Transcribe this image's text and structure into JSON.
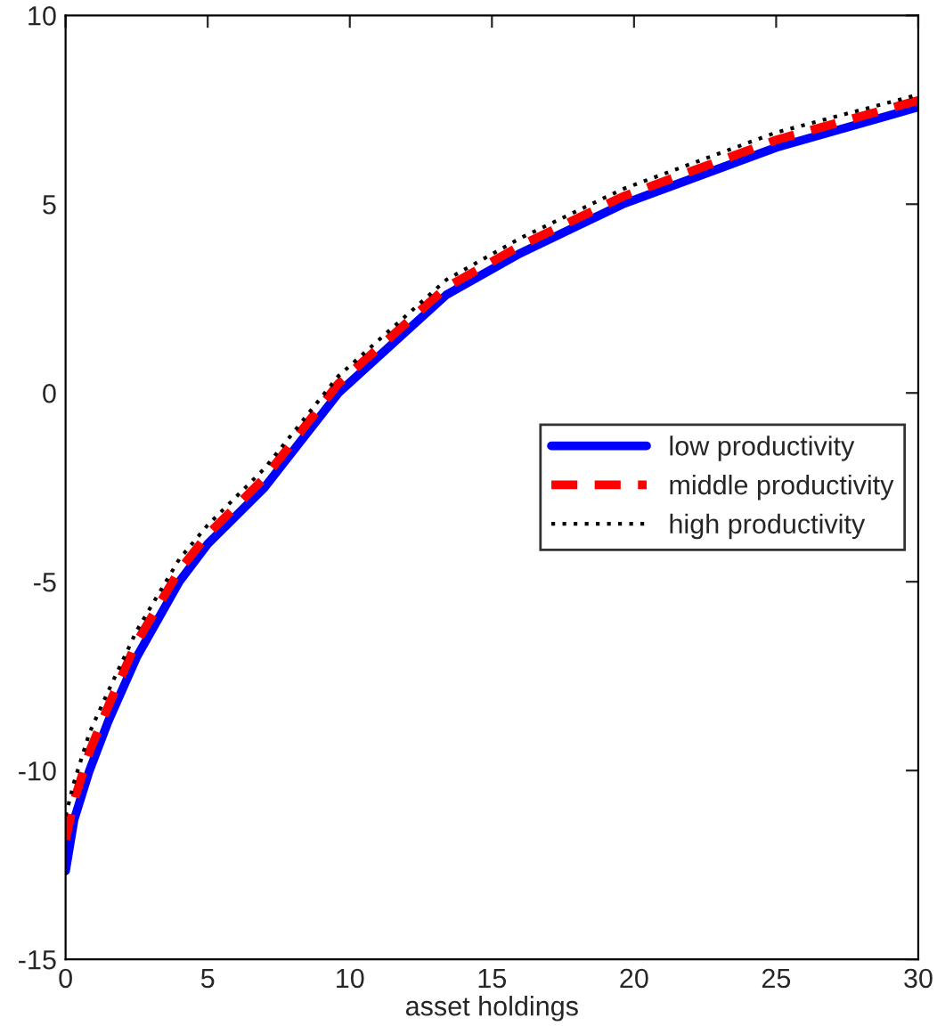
{
  "chart_data": {
    "type": "line",
    "xlabel": "asset holdings",
    "x": [
      0,
      0.3,
      0.84,
      1.5,
      2.5,
      4,
      5,
      7,
      9.6,
      13.4,
      16,
      19.6,
      25,
      30
    ],
    "series": [
      {
        "name": "low productivity",
        "color": "#0000ff",
        "line_style": "solid",
        "values": [
          -12.66,
          -11.3,
          -10,
          -8.7,
          -7.0,
          -5.0,
          -4.0,
          -2.5,
          0,
          2.6,
          3.7,
          5.0,
          6.5,
          7.57
        ]
      },
      {
        "name": "middle productivity",
        "color": "#ff0000",
        "line_style": "dashed",
        "values": [
          -11.83,
          -10.8,
          -9.5,
          -8.3,
          -6.6,
          -4.7,
          -3.75,
          -2.25,
          0.25,
          2.8,
          3.9,
          5.2,
          6.7,
          7.75
        ]
      },
      {
        "name": "high productivity",
        "color": "#000000",
        "line_style": "dotted",
        "values": [
          -11.2,
          -10.3,
          -9.0,
          -7.9,
          -6.3,
          -4.4,
          -3.5,
          -2.0,
          0.45,
          3.0,
          4.1,
          5.4,
          6.9,
          7.9
        ]
      }
    ],
    "xlim": [
      0,
      30
    ],
    "xticks": [
      0,
      5,
      10,
      15,
      20,
      25,
      30
    ],
    "ylim": [
      -15,
      10
    ],
    "yticks": [
      -15,
      -10,
      -5,
      0,
      5,
      10
    ],
    "grid": false,
    "legend": "center right",
    "marker": "none"
  }
}
